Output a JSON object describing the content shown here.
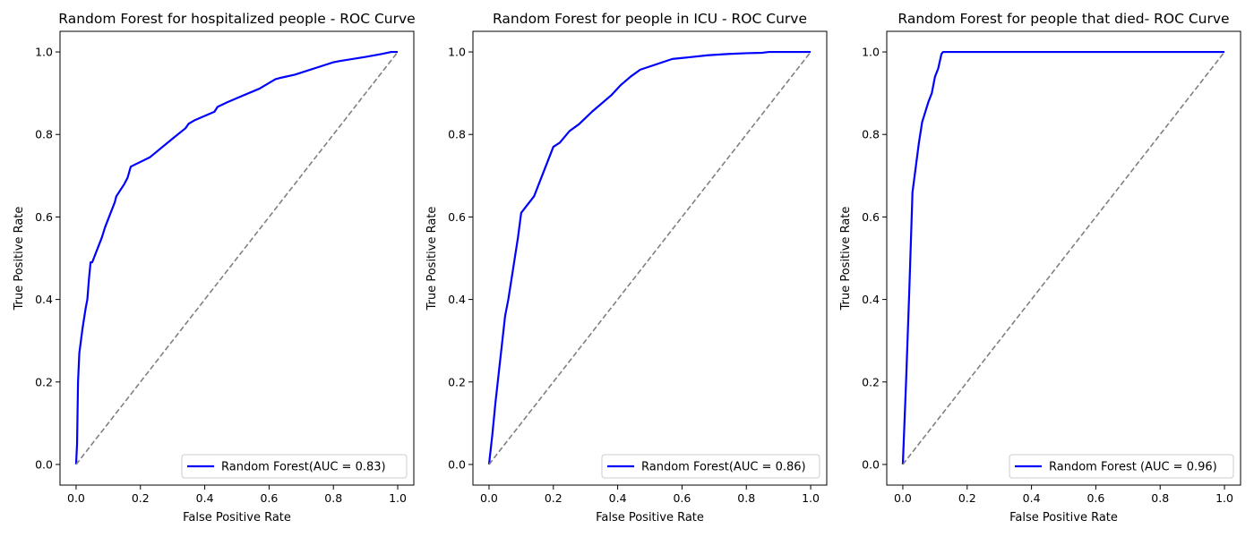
{
  "chart_data": [
    {
      "type": "line",
      "title": "Random Forest for hospitalized people - ROC Curve",
      "xlabel": "False Positive Rate",
      "ylabel": "True Positive Rate",
      "xlim": [
        -0.05,
        1.05
      ],
      "ylim": [
        -0.05,
        1.05
      ],
      "xticks": [
        0.0,
        0.2,
        0.4,
        0.6,
        0.8,
        1.0
      ],
      "yticks": [
        0.0,
        0.2,
        0.4,
        0.6,
        0.8,
        1.0
      ],
      "tick_labels": [
        "0.0",
        "0.2",
        "0.4",
        "0.6",
        "0.8",
        "1.0"
      ],
      "grid": false,
      "legend_position": "lower-right",
      "series": [
        {
          "name": "Random Forest(AUC = 0.83)",
          "color": "#0000ff",
          "x": [
            0.0,
            0.003,
            0.006,
            0.01,
            0.02,
            0.03,
            0.035,
            0.04,
            0.045,
            0.05,
            0.07,
            0.08,
            0.09,
            0.1,
            0.12,
            0.125,
            0.15,
            0.16,
            0.17,
            0.23,
            0.3,
            0.34,
            0.35,
            0.37,
            0.43,
            0.44,
            0.47,
            0.5,
            0.57,
            0.62,
            0.64,
            0.68,
            0.78,
            0.8,
            0.82,
            0.9,
            0.95,
            0.98,
            1.0
          ],
          "y": [
            0.0,
            0.05,
            0.2,
            0.27,
            0.33,
            0.38,
            0.4,
            0.45,
            0.49,
            0.49,
            0.53,
            0.55,
            0.575,
            0.595,
            0.635,
            0.65,
            0.68,
            0.695,
            0.722,
            0.745,
            0.79,
            0.815,
            0.826,
            0.835,
            0.855,
            0.867,
            0.878,
            0.888,
            0.911,
            0.934,
            0.938,
            0.945,
            0.97,
            0.975,
            0.978,
            0.988,
            0.995,
            1.0,
            1.0
          ]
        },
        {
          "name": "",
          "color": "#808080",
          "dashed": true,
          "x": [
            0.0,
            1.0
          ],
          "y": [
            0.0,
            1.0
          ]
        }
      ]
    },
    {
      "type": "line",
      "title": "Random Forest  for people in ICU - ROC Curve",
      "xlabel": "False Positive Rate",
      "ylabel": "True Positive Rate",
      "xlim": [
        -0.05,
        1.05
      ],
      "ylim": [
        -0.05,
        1.05
      ],
      "xticks": [
        0.0,
        0.2,
        0.4,
        0.6,
        0.8,
        1.0
      ],
      "yticks": [
        0.0,
        0.2,
        0.4,
        0.6,
        0.8,
        1.0
      ],
      "tick_labels": [
        "0.0",
        "0.2",
        "0.4",
        "0.6",
        "0.8",
        "1.0"
      ],
      "grid": false,
      "legend_position": "lower-right",
      "series": [
        {
          "name": "Random Forest(AUC = 0.86)",
          "color": "#0000ff",
          "x": [
            0.0,
            0.01,
            0.02,
            0.03,
            0.04,
            0.05,
            0.06,
            0.07,
            0.08,
            0.09,
            0.1,
            0.11,
            0.14,
            0.17,
            0.2,
            0.22,
            0.25,
            0.28,
            0.32,
            0.38,
            0.41,
            0.44,
            0.47,
            0.52,
            0.57,
            0.62,
            0.68,
            0.74,
            0.8,
            0.85,
            0.87,
            0.9,
            1.0
          ],
          "y": [
            0.0,
            0.07,
            0.15,
            0.22,
            0.29,
            0.36,
            0.4,
            0.45,
            0.5,
            0.55,
            0.61,
            0.62,
            0.65,
            0.71,
            0.77,
            0.78,
            0.808,
            0.825,
            0.855,
            0.895,
            0.92,
            0.94,
            0.957,
            0.97,
            0.983,
            0.987,
            0.992,
            0.995,
            0.997,
            0.998,
            1.0,
            1.0,
            1.0
          ]
        },
        {
          "name": "",
          "color": "#808080",
          "dashed": true,
          "x": [
            0.0,
            1.0
          ],
          "y": [
            0.0,
            1.0
          ]
        }
      ]
    },
    {
      "type": "line",
      "title": "Random Forest for people that died- ROC Curve",
      "xlabel": "False Positive Rate",
      "ylabel": "True Positive Rate",
      "xlim": [
        -0.05,
        1.05
      ],
      "ylim": [
        -0.05,
        1.05
      ],
      "xticks": [
        0.0,
        0.2,
        0.4,
        0.6,
        0.8,
        1.0
      ],
      "yticks": [
        0.0,
        0.2,
        0.4,
        0.6,
        0.8,
        1.0
      ],
      "tick_labels": [
        "0.0",
        "0.2",
        "0.4",
        "0.6",
        "0.8",
        "1.0"
      ],
      "grid": false,
      "legend_position": "lower-right",
      "series": [
        {
          "name": "Random Forest (AUC = 0.96)",
          "color": "#0000ff",
          "x": [
            0.0,
            0.01,
            0.02,
            0.03,
            0.05,
            0.06,
            0.08,
            0.09,
            0.1,
            0.11,
            0.12,
            0.125,
            0.13,
            1.0
          ],
          "y": [
            0.0,
            0.2,
            0.42,
            0.66,
            0.78,
            0.83,
            0.88,
            0.9,
            0.94,
            0.96,
            0.995,
            1.0,
            1.0,
            1.0
          ]
        },
        {
          "name": "",
          "color": "#808080",
          "dashed": true,
          "x": [
            0.0,
            1.0
          ],
          "y": [
            0.0,
            1.0
          ]
        }
      ]
    }
  ]
}
